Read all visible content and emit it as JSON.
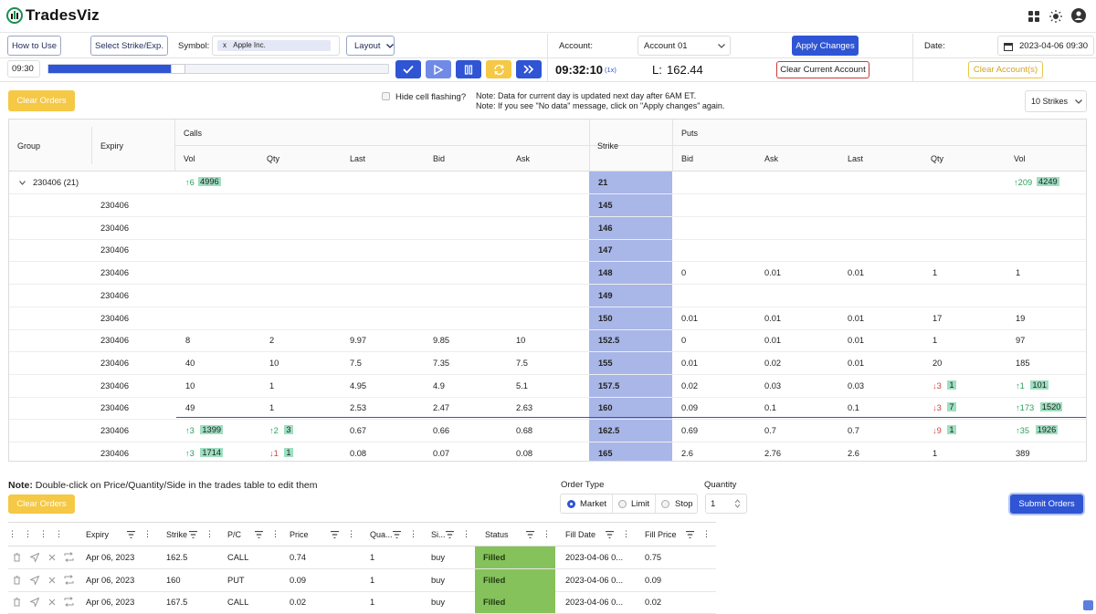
{
  "app": {
    "logo": "TradesViz",
    "brand_color": "#2f55d4"
  },
  "toolbar": {
    "how_to_use": "How to Use",
    "select_strike": "Select Strike/Exp.",
    "symbol_label": "Symbol:",
    "symbol_chip_x": "x",
    "symbol_value": "Apple Inc.",
    "layout": "Layout",
    "account_label": "Account:",
    "account_value": "Account 01",
    "apply_changes": "Apply Changes",
    "date_label": "Date:",
    "date_value": "2023-04-06 09:30",
    "time_input": "09:30",
    "clock": "09:32:10",
    "speed": "(1x)",
    "last_label": "L:",
    "last_price": "162.44",
    "clear_current_account": "Clear Current Account",
    "clear_accounts": "Clear Account(s)",
    "progress_fraction": 0.37
  },
  "options_panel": {
    "clear_orders": "Clear Orders",
    "hide_flashing": "Hide cell flashing?",
    "note1": "Note: Data for current day is updated next day after 6AM ET.",
    "note2": "Note: If you see \"No data\" message, click on \"Apply changes\" again.",
    "strikes_select": "10 Strikes"
  },
  "chain": {
    "headers": {
      "group": "Group",
      "expiry": "Expiry",
      "calls": "Calls",
      "puts": "Puts",
      "strike": "Strike",
      "vol": "Vol",
      "qty": "Qty",
      "last": "Last",
      "bid": "Bid",
      "ask": "Ask"
    },
    "group_row": {
      "label": "230406 (21)",
      "strike": "21",
      "call_vol_delta": "↑6",
      "call_vol": "4996",
      "put_vol_delta": "↑209",
      "put_vol": "4249"
    },
    "rows": [
      {
        "expiry": "230406",
        "strike": "145"
      },
      {
        "expiry": "230406",
        "strike": "146"
      },
      {
        "expiry": "230406",
        "strike": "147"
      },
      {
        "expiry": "230406",
        "strike": "148",
        "p_bid": "0",
        "p_ask": "0.01",
        "p_last": "0.01",
        "p_qty": "1",
        "p_vol": "1"
      },
      {
        "expiry": "230406",
        "strike": "149"
      },
      {
        "expiry": "230406",
        "strike": "150",
        "p_bid": "0.01",
        "p_ask": "0.01",
        "p_last": "0.01",
        "p_qty": "17",
        "p_vol": "19"
      },
      {
        "expiry": "230406",
        "strike": "152.5",
        "c_vol": "8",
        "c_qty": "2",
        "c_last": "9.97",
        "c_bid": "9.85",
        "c_ask": "10",
        "p_bid": "0",
        "p_ask": "0.01",
        "p_last": "0.01",
        "p_qty": "1",
        "p_vol": "97"
      },
      {
        "expiry": "230406",
        "strike": "155",
        "c_vol": "40",
        "c_qty": "10",
        "c_last": "7.5",
        "c_bid": "7.35",
        "c_ask": "7.5",
        "p_bid": "0.01",
        "p_ask": "0.02",
        "p_last": "0.01",
        "p_qty": "20",
        "p_vol": "185"
      },
      {
        "expiry": "230406",
        "strike": "157.5",
        "c_vol": "10",
        "c_qty": "1",
        "c_last": "4.95",
        "c_bid": "4.9",
        "c_ask": "5.1",
        "p_bid": "0.02",
        "p_ask": "0.03",
        "p_last": "0.03",
        "p_qty_delta": "↓3",
        "p_qty": "1",
        "p_vol_delta": "↑1",
        "p_vol": "101"
      },
      {
        "expiry": "230406",
        "strike": "160",
        "c_vol": "49",
        "c_qty": "1",
        "c_last": "2.53",
        "c_bid": "2.47",
        "c_ask": "2.63",
        "p_bid": "0.09",
        "p_ask": "0.1",
        "p_last": "0.1",
        "p_qty_delta": "↓3",
        "p_qty": "7",
        "p_vol_delta": "↑173",
        "p_vol": "1520"
      },
      {
        "expiry": "230406",
        "strike": "162.5",
        "c_vol_delta": "↑3",
        "c_vol": "1399",
        "c_qty_delta": "↑2",
        "c_qty": "3",
        "c_last": "0.67",
        "c_bid": "0.66",
        "c_ask": "0.68",
        "p_bid": "0.69",
        "p_ask": "0.7",
        "p_last": "0.7",
        "p_qty_delta": "↓9",
        "p_qty": "1",
        "p_vol_delta": "↑35",
        "p_vol": "1926"
      },
      {
        "expiry": "230406",
        "strike": "165",
        "c_vol_delta": "↑3",
        "c_vol": "1714",
        "c_qty_delta": "↓1",
        "c_qty": "1",
        "c_last": "0.08",
        "c_bid": "0.07",
        "c_ask": "0.08",
        "p_bid": "2.6",
        "p_ask": "2.76",
        "p_last": "2.6",
        "p_qty": "1",
        "p_vol": "389"
      }
    ]
  },
  "order_panel": {
    "note_bold": "Note:",
    "note_text": "Double-click on Price/Quantity/Side in the trades table to edit them",
    "clear_orders": "Clear Orders",
    "order_type_label": "Order Type",
    "types": [
      "Market",
      "Limit",
      "Stop"
    ],
    "quantity_label": "Quantity",
    "quantity_value": "1",
    "submit": "Submit Orders"
  },
  "trades": {
    "headers": {
      "expiry": "Expiry",
      "strike": "Strike",
      "pc": "P/C",
      "price": "Price",
      "qty": "Qua...",
      "side": "Si...",
      "status": "Status",
      "fill_date": "Fill Date",
      "fill_price": "Fill Price"
    },
    "rows": [
      {
        "expiry": "Apr 06, 2023",
        "strike": "162.5",
        "pc": "CALL",
        "price": "0.74",
        "qty": "1",
        "side": "buy",
        "status": "Filled",
        "fill_date": "2023-04-06 0...",
        "fill_price": "0.75"
      },
      {
        "expiry": "Apr 06, 2023",
        "strike": "160",
        "pc": "PUT",
        "price": "0.09",
        "qty": "1",
        "side": "buy",
        "status": "Filled",
        "fill_date": "2023-04-06 0...",
        "fill_price": "0.09"
      },
      {
        "expiry": "Apr 06, 2023",
        "strike": "167.5",
        "pc": "CALL",
        "price": "0.02",
        "qty": "1",
        "side": "buy",
        "status": "Filled",
        "fill_date": "2023-04-06 0...",
        "fill_price": "0.02"
      }
    ]
  }
}
